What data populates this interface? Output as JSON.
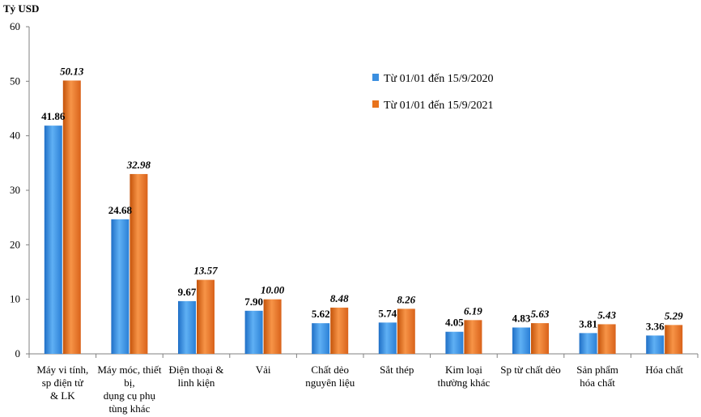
{
  "chart_data": {
    "type": "bar",
    "unit_label": "Tỷ USD",
    "ylim": [
      0,
      60
    ],
    "yticks": [
      "0",
      "10",
      "20",
      "30",
      "40",
      "50",
      "60"
    ],
    "categories": [
      [
        "Máy vi tính,",
        "sp điện tử",
        "& LK"
      ],
      [
        "Máy móc, thiết",
        "bị,",
        "dụng cụ phụ",
        "tùng khác"
      ],
      [
        "Điện thoại &",
        "linh kiện"
      ],
      [
        "Vải"
      ],
      [
        "Chất dẻo",
        "nguyên liệu"
      ],
      [
        "Sắt thép"
      ],
      [
        "Kim loại",
        "thường khác"
      ],
      [
        "Sp từ chất dẻo"
      ],
      [
        "Sản phẩm",
        "hóa chất"
      ],
      [
        "Hóa chất"
      ]
    ],
    "series": [
      {
        "name": "Từ 01/01 đến 15/9/2020",
        "color": "#3b8fe0",
        "values": [
          41.86,
          24.68,
          9.67,
          7.9,
          5.62,
          5.74,
          4.05,
          4.83,
          3.81,
          3.36
        ],
        "labels": [
          "41.86",
          "24.68",
          "9.67",
          "7.90",
          "5.62",
          "5.74",
          "4.05",
          "4.83",
          "3.81",
          "3.36"
        ]
      },
      {
        "name": "Từ 01/01 đến 15/9/2021",
        "color": "#e8731c",
        "values": [
          50.13,
          32.98,
          13.57,
          10.0,
          8.48,
          8.26,
          6.19,
          5.63,
          5.43,
          5.29
        ],
        "labels": [
          "50.13",
          "32.98",
          "13.57",
          "10.00",
          "8.48",
          "8.26",
          "6.19",
          "5.63",
          "5.43",
          "5.29"
        ]
      }
    ],
    "grid": false,
    "legend_position": "top-right"
  }
}
